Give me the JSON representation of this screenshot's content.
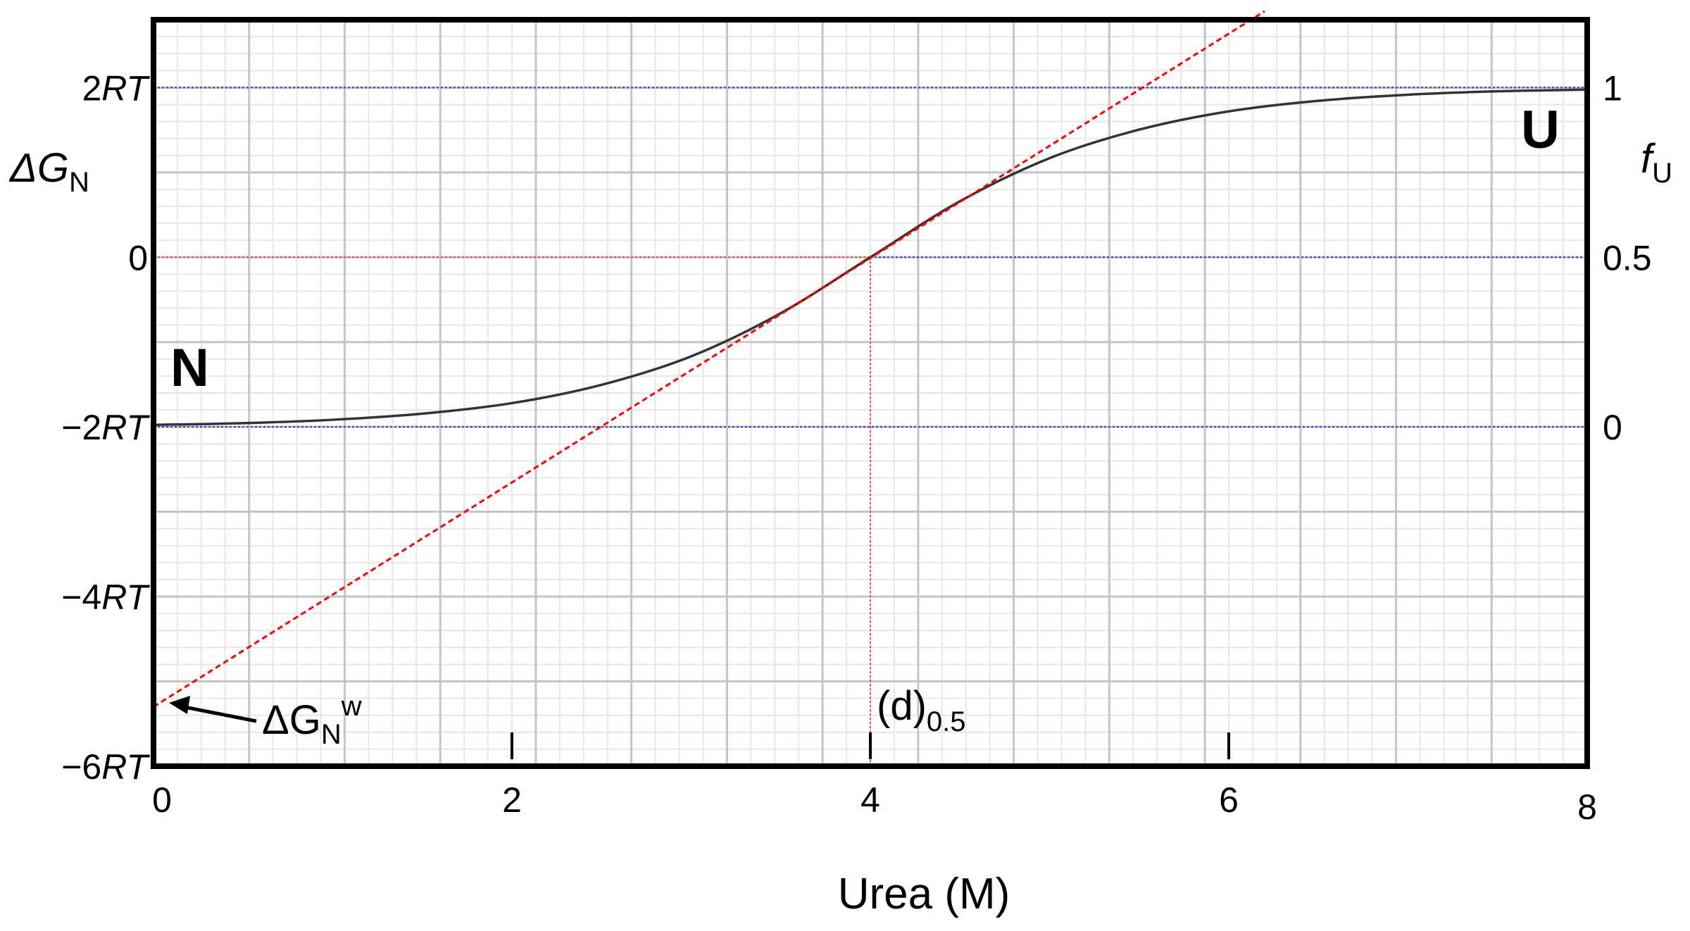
{
  "chart_data": {
    "type": "line",
    "xlabel": "Urea (M)",
    "x_ticks": [
      "0",
      "2",
      "4",
      "6",
      "8"
    ],
    "xlim": [
      0,
      8
    ],
    "left_axis": {
      "label_main": "ΔG",
      "label_sub": "N",
      "ylim": [
        -6,
        2.8
      ],
      "ticks": [
        {
          "v": 2,
          "text": "2RT"
        },
        {
          "v": 0,
          "text": "0"
        },
        {
          "v": -2,
          "text": "−2RT"
        },
        {
          "v": -4,
          "text": "−4RT"
        },
        {
          "v": -6,
          "text": "−6RT"
        }
      ]
    },
    "right_axis": {
      "label_main": "f",
      "label_sub": "U",
      "ticks": [
        {
          "v": 1,
          "text": "1"
        },
        {
          "v": 0.5,
          "text": "0.5"
        },
        {
          "v": 0,
          "text": "0"
        }
      ]
    },
    "series": [
      {
        "kind": "fraction-unfolded",
        "color": "#333333",
        "x": [
          0,
          0.5,
          1,
          1.5,
          2,
          2.5,
          3,
          3.5,
          4,
          4.5,
          5,
          5.5,
          6,
          6.5,
          7,
          7.5,
          8
        ],
        "y": [
          0.006,
          0.011,
          0.021,
          0.039,
          0.07,
          0.124,
          0.208,
          0.335,
          0.5,
          0.665,
          0.792,
          0.876,
          0.93,
          0.961,
          0.979,
          0.989,
          0.994
        ]
      },
      {
        "kind": "ΔG_N linear extrapolation",
        "color": "#ff0000",
        "style": "dashed",
        "x": [
          0,
          6.2
        ],
        "y": [
          -5.3,
          2.9
        ]
      }
    ],
    "reference_lines": {
      "blue_dotted_at_fU": [
        1,
        0.5,
        0
      ],
      "red_dotted_at_dG": 0,
      "red_dotted_at_x": 4
    },
    "annotations": {
      "native_state": "N",
      "unfolded_state": "U",
      "intercept_main": "ΔG",
      "intercept_sub": "N",
      "intercept_sup": "w",
      "midpoint_main": "(d)",
      "midpoint_sub": "0.5"
    },
    "grid": true
  }
}
